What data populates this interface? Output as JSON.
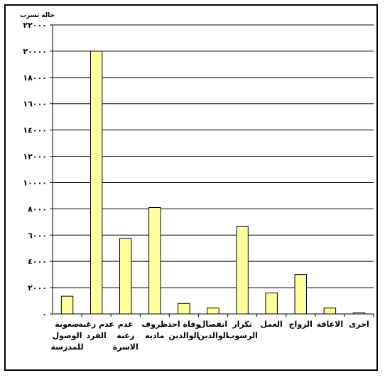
{
  "chart_data": {
    "type": "bar",
    "title": "",
    "xlabel": "",
    "ylabel": "حالة تسرب",
    "ylim": [
      0,
      22000
    ],
    "grid": true,
    "legend": "none",
    "bar_color": "#ffff99",
    "bar_border_color": "#000000",
    "y_tick_labels": [
      "٠",
      "٢٠٠٠",
      "٤٠٠٠",
      "٦٠٠٠",
      "٨٠٠٠",
      "١٠٠٠٠",
      "١٢٠٠٠",
      "١٤٠٠٠",
      "١٦٠٠٠",
      "١٨٠٠٠",
      "٢٠٠٠٠",
      "٢٢٠٠٠"
    ],
    "y_ticks": [
      0,
      2000,
      4000,
      6000,
      8000,
      10000,
      12000,
      14000,
      16000,
      18000,
      20000,
      22000
    ],
    "categories": [
      [
        "صعوبة",
        "الوصول",
        "للمدرسة"
      ],
      [
        "عدم رغبة",
        "الفرد"
      ],
      [
        "عدم",
        "رغبة",
        "الاسرة"
      ],
      [
        "ظروف",
        "مادية"
      ],
      [
        "وفاة احد",
        "الوالدين"
      ],
      [
        "انفصال",
        "الوالدين"
      ],
      [
        "تكرار",
        "الرسوب"
      ],
      [
        "العمل"
      ],
      [
        "الزواج"
      ],
      [
        "الاعاقة"
      ],
      [
        "اخرى"
      ]
    ],
    "values": [
      1350,
      20000,
      5750,
      8100,
      800,
      450,
      6650,
      1600,
      3000,
      450,
      80
    ]
  }
}
